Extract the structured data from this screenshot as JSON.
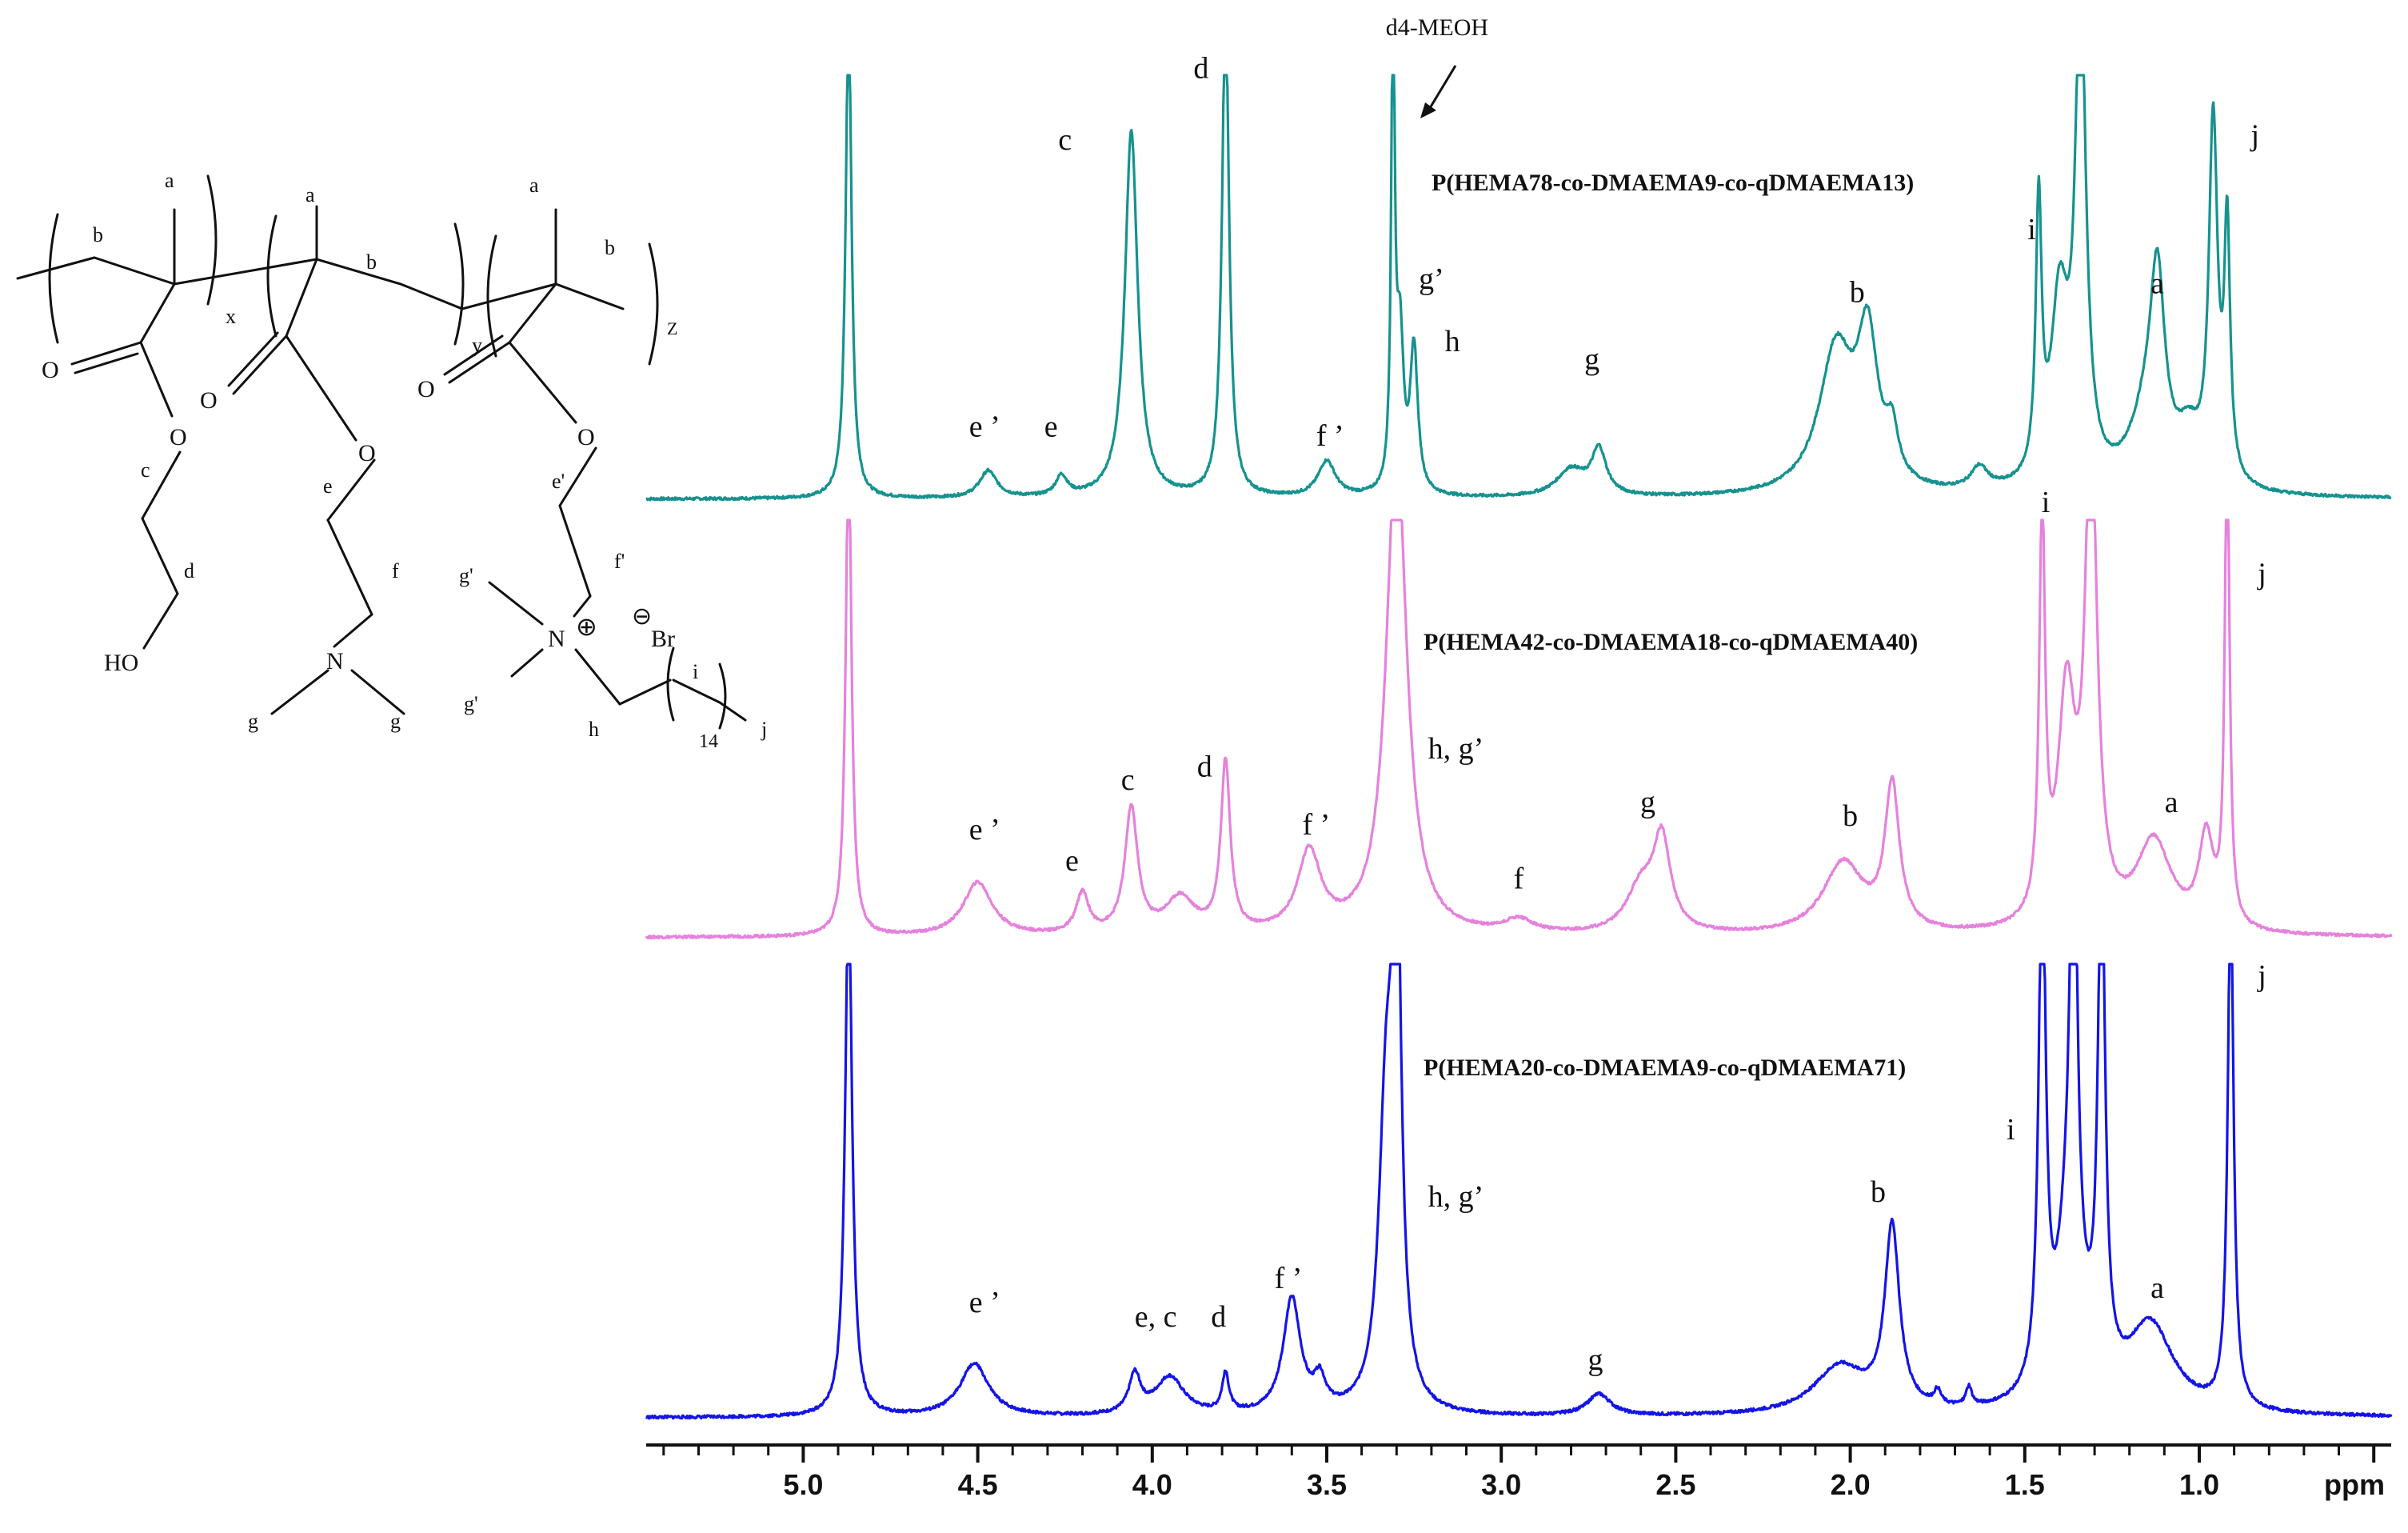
{
  "colors": {
    "s1": "#16928f",
    "s2": "#e582dc",
    "s3": "#1414e8",
    "axis": "#111111"
  },
  "chart_data": {
    "type": "line",
    "xlabel": "ppm",
    "xlim": [
      5.45,
      0.45
    ],
    "x_reversed": true,
    "x_ticks": [
      5.0,
      4.5,
      4.0,
      3.5,
      3.0,
      2.5,
      2.0,
      1.5,
      1.0
    ],
    "x_tick_labels": [
      "5.0",
      "4.5",
      "4.0",
      "3.5",
      "3.0",
      "2.5",
      "2.0",
      "1.5",
      "1.0"
    ],
    "x_unit_label": "ppm",
    "annotation": {
      "text": "d4-MEOH",
      "x": 3.31
    },
    "series": [
      {
        "name": "P(HEMA78-co-DMAEMA9-co-qDMAEMA13)",
        "color": "#16928f",
        "peaks": [
          {
            "x": 4.87,
            "h": 1.1,
            "w": 0.01
          },
          {
            "x": 4.47,
            "h": 0.06,
            "w": 0.03
          },
          {
            "x": 4.26,
            "h": 0.045,
            "w": 0.02
          },
          {
            "x": 4.06,
            "h": 0.82,
            "w": 0.022
          },
          {
            "x": 3.79,
            "h": 1.1,
            "w": 0.012
          },
          {
            "x": 3.5,
            "h": 0.08,
            "w": 0.03
          },
          {
            "x": 3.31,
            "h": 1.1,
            "w": 0.006
          },
          {
            "x": 3.29,
            "h": 0.33,
            "w": 0.012
          },
          {
            "x": 3.25,
            "h": 0.32,
            "w": 0.013
          },
          {
            "x": 2.8,
            "h": 0.06,
            "w": 0.05
          },
          {
            "x": 2.72,
            "h": 0.1,
            "w": 0.025
          },
          {
            "x": 2.04,
            "h": 0.32,
            "w": 0.06
          },
          {
            "x": 1.95,
            "h": 0.32,
            "w": 0.035
          },
          {
            "x": 1.88,
            "h": 0.1,
            "w": 0.02
          },
          {
            "x": 1.63,
            "h": 0.05,
            "w": 0.03
          },
          {
            "x": 1.46,
            "h": 0.6,
            "w": 0.01
          },
          {
            "x": 1.4,
            "h": 0.4,
            "w": 0.03
          },
          {
            "x": 1.34,
            "h": 1.1,
            "w": 0.018
          },
          {
            "x": 1.12,
            "h": 0.4,
            "w": 0.025
          },
          {
            "x": 1.15,
            "h": 0.15,
            "w": 0.06
          },
          {
            "x": 0.96,
            "h": 0.8,
            "w": 0.015
          },
          {
            "x": 0.92,
            "h": 0.55,
            "w": 0.01
          },
          {
            "x": 1.03,
            "h": 0.1,
            "w": 0.04
          }
        ],
        "labels": [
          {
            "text": "e ’",
            "x": 4.48,
            "y": 0.14
          },
          {
            "text": "e",
            "x": 4.29,
            "y": 0.14
          },
          {
            "text": "c",
            "x": 4.25,
            "y": 0.78
          },
          {
            "text": "d",
            "x": 3.86,
            "y": 0.94
          },
          {
            "text": "f ’",
            "x": 3.49,
            "y": 0.12
          },
          {
            "text": "g’",
            "x": 3.2,
            "y": 0.47
          },
          {
            "text": "h",
            "x": 3.14,
            "y": 0.33
          },
          {
            "text": "g",
            "x": 2.74,
            "y": 0.29
          },
          {
            "text": "b",
            "x": 1.98,
            "y": 0.44
          },
          {
            "text": "i",
            "x": 1.48,
            "y": 0.58
          },
          {
            "text": "a",
            "x": 1.12,
            "y": 0.46
          },
          {
            "text": "j",
            "x": 0.84,
            "y": 0.79
          }
        ]
      },
      {
        "name": "P(HEMA42-co-DMAEMA18-co-qDMAEMA40)",
        "color": "#e582dc",
        "peaks": [
          {
            "x": 4.87,
            "h": 1.1,
            "w": 0.01
          },
          {
            "x": 4.5,
            "h": 0.12,
            "w": 0.05
          },
          {
            "x": 4.2,
            "h": 0.09,
            "w": 0.022
          },
          {
            "x": 4.06,
            "h": 0.28,
            "w": 0.022
          },
          {
            "x": 3.92,
            "h": 0.08,
            "w": 0.05
          },
          {
            "x": 3.79,
            "h": 0.38,
            "w": 0.016
          },
          {
            "x": 3.55,
            "h": 0.18,
            "w": 0.04
          },
          {
            "x": 3.3,
            "h": 1.1,
            "w": 0.035
          },
          {
            "x": 2.95,
            "h": 0.03,
            "w": 0.05
          },
          {
            "x": 2.6,
            "h": 0.1,
            "w": 0.05
          },
          {
            "x": 2.54,
            "h": 0.2,
            "w": 0.03
          },
          {
            "x": 2.02,
            "h": 0.16,
            "w": 0.07
          },
          {
            "x": 1.88,
            "h": 0.32,
            "w": 0.025
          },
          {
            "x": 1.45,
            "h": 0.9,
            "w": 0.01
          },
          {
            "x": 1.38,
            "h": 0.5,
            "w": 0.03
          },
          {
            "x": 1.31,
            "h": 1.1,
            "w": 0.02
          },
          {
            "x": 1.13,
            "h": 0.2,
            "w": 0.06
          },
          {
            "x": 0.98,
            "h": 0.2,
            "w": 0.025
          },
          {
            "x": 0.92,
            "h": 1.1,
            "w": 0.008
          }
        ],
        "labels": [
          {
            "text": "e ’",
            "x": 4.48,
            "y": 0.22
          },
          {
            "text": "e",
            "x": 4.23,
            "y": 0.15
          },
          {
            "text": "c",
            "x": 4.07,
            "y": 0.33
          },
          {
            "text": "d",
            "x": 3.85,
            "y": 0.36
          },
          {
            "text": "f ’",
            "x": 3.53,
            "y": 0.23
          },
          {
            "text": "h, g’",
            "x": 3.13,
            "y": 0.4
          },
          {
            "text": "f",
            "x": 2.95,
            "y": 0.11
          },
          {
            "text": "g",
            "x": 2.58,
            "y": 0.28
          },
          {
            "text": "b",
            "x": 2.0,
            "y": 0.25
          },
          {
            "text": "i",
            "x": 1.44,
            "y": 0.95
          },
          {
            "text": "a",
            "x": 1.08,
            "y": 0.28
          },
          {
            "text": "j",
            "x": 0.82,
            "y": 0.79
          }
        ]
      },
      {
        "name": "P(HEMA20-co-DMAEMA9-co-qDMAEMA71)",
        "color": "#1414e8",
        "peaks": [
          {
            "x": 4.87,
            "h": 1.1,
            "w": 0.012
          },
          {
            "x": 4.51,
            "h": 0.11,
            "w": 0.05
          },
          {
            "x": 4.05,
            "h": 0.08,
            "w": 0.02
          },
          {
            "x": 3.95,
            "h": 0.08,
            "w": 0.05
          },
          {
            "x": 3.79,
            "h": 0.08,
            "w": 0.012
          },
          {
            "x": 3.6,
            "h": 0.24,
            "w": 0.03
          },
          {
            "x": 3.52,
            "h": 0.06,
            "w": 0.02
          },
          {
            "x": 3.33,
            "h": 0.6,
            "w": 0.025
          },
          {
            "x": 3.3,
            "h": 1.1,
            "w": 0.015
          },
          {
            "x": 2.72,
            "h": 0.045,
            "w": 0.04
          },
          {
            "x": 2.03,
            "h": 0.1,
            "w": 0.09
          },
          {
            "x": 1.88,
            "h": 0.38,
            "w": 0.025
          },
          {
            "x": 1.75,
            "h": 0.03,
            "w": 0.012
          },
          {
            "x": 1.66,
            "h": 0.04,
            "w": 0.01
          },
          {
            "x": 1.45,
            "h": 1.1,
            "w": 0.012
          },
          {
            "x": 1.37,
            "h": 0.4,
            "w": 0.04
          },
          {
            "x": 1.36,
            "h": 1.1,
            "w": 0.01
          },
          {
            "x": 1.28,
            "h": 1.1,
            "w": 0.012
          },
          {
            "x": 1.14,
            "h": 0.18,
            "w": 0.08
          },
          {
            "x": 0.91,
            "h": 1.1,
            "w": 0.01
          }
        ],
        "labels": [
          {
            "text": "e ’",
            "x": 4.48,
            "y": 0.22
          },
          {
            "text": "e, c",
            "x": 3.99,
            "y": 0.19
          },
          {
            "text": "d",
            "x": 3.81,
            "y": 0.19
          },
          {
            "text": "f ’",
            "x": 3.61,
            "y": 0.27
          },
          {
            "text": "h, g’",
            "x": 3.13,
            "y": 0.44
          },
          {
            "text": "g",
            "x": 2.73,
            "y": 0.1
          },
          {
            "text": "b",
            "x": 1.92,
            "y": 0.45
          },
          {
            "text": "i",
            "x": 1.54,
            "y": 0.58
          },
          {
            "text": "a",
            "x": 1.12,
            "y": 0.25
          },
          {
            "text": "j",
            "x": 0.82,
            "y": 0.9
          }
        ]
      }
    ]
  },
  "structure": {
    "x": "x",
    "y": "y",
    "z": "Z",
    "a": "a",
    "b": "b",
    "c": "c",
    "d": "d",
    "e": "e",
    "e_prime": "e'",
    "f": "f",
    "f_prime": "f'",
    "g": "g",
    "g_prime": "g'",
    "h": "h",
    "i": "i",
    "j": "j",
    "O": "O",
    "HO": "HO",
    "N": "N",
    "Br": "Br",
    "n14": "14",
    "plus": "⊕",
    "minus": "⊖"
  }
}
